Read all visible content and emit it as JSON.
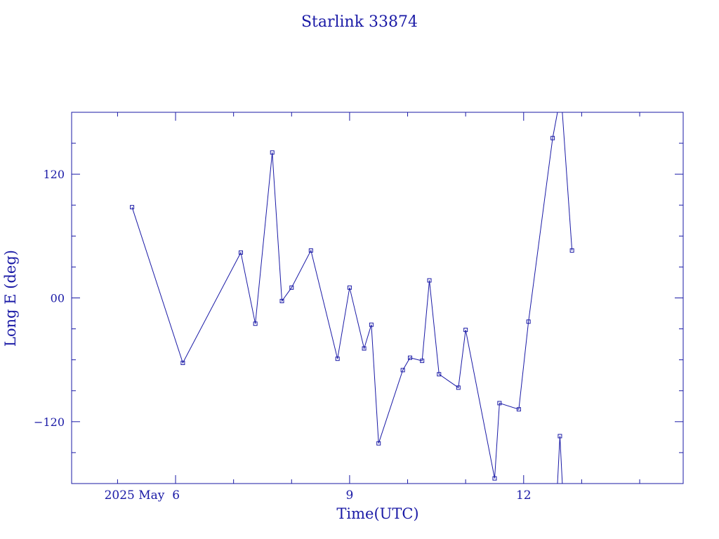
{
  "chart_data": {
    "type": "line",
    "title": "Starlink 33874",
    "xlabel": "Time(UTC)",
    "ylabel": "Long E (deg)",
    "x_unit": "days",
    "xlim": [
      "2025-05-04T05:00",
      "2025-05-14T18:00"
    ],
    "ylim": [
      -180,
      180
    ],
    "x_tick_labels": [
      "2025 May  6",
      "9",
      "12"
    ],
    "x_tick_values": [
      "2025-05-06T00:00",
      "2025-05-09T00:00",
      "2025-05-12T00:00"
    ],
    "y_ticks": [
      120,
      0,
      -120
    ],
    "y_tick_labels": [
      "120",
      "00",
      "−120"
    ],
    "series": [
      {
        "color": "#1a1aa6",
        "marker": "square",
        "points": [
          {
            "x": "2025-05-05T06:00",
            "y": 88
          },
          {
            "x": "2025-05-06T03:00",
            "y": -63
          },
          {
            "x": "2025-05-07T03:00",
            "y": 44
          },
          {
            "x": "2025-05-07T09:00",
            "y": -25
          },
          {
            "x": "2025-05-07T16:00",
            "y": 141
          },
          {
            "x": "2025-05-07T20:00",
            "y": -3
          },
          {
            "x": "2025-05-08T00:00",
            "y": 10
          },
          {
            "x": "2025-05-08T08:00",
            "y": 46
          },
          {
            "x": "2025-05-08T19:00",
            "y": -59
          },
          {
            "x": "2025-05-09T00:00",
            "y": 10
          },
          {
            "x": "2025-05-09T06:00",
            "y": -49
          },
          {
            "x": "2025-05-09T09:00",
            "y": -26
          },
          {
            "x": "2025-05-09T12:00",
            "y": -141
          },
          {
            "x": "2025-05-09T22:00",
            "y": -70
          },
          {
            "x": "2025-05-10T01:00",
            "y": -58
          },
          {
            "x": "2025-05-10T06:00",
            "y": -61
          },
          {
            "x": "2025-05-10T09:00",
            "y": 17
          },
          {
            "x": "2025-05-10T13:00",
            "y": -74
          },
          {
            "x": "2025-05-10T21:00",
            "y": -87
          },
          {
            "x": "2025-05-11T00:00",
            "y": -31
          },
          {
            "x": "2025-05-11T12:00",
            "y": -175
          },
          {
            "x": "2025-05-11T14:00",
            "y": -102
          },
          {
            "x": "2025-05-11T22:00",
            "y": -108
          },
          {
            "x": "2025-05-12T02:00",
            "y": -23
          },
          {
            "x": "2025-05-12T12:00",
            "y": 155
          },
          {
            "x": "2025-05-12T14:00",
            "y": 180,
            "marker": false
          },
          {
            "x": "2025-05-12T14:00",
            "y": -180,
            "marker": false,
            "break_before": true
          },
          {
            "x": "2025-05-12T15:00",
            "y": -134
          },
          {
            "x": "2025-05-12T16:00",
            "y": -180,
            "marker": false
          },
          {
            "x": "2025-05-12T16:00",
            "y": 180,
            "marker": false,
            "break_before": true
          },
          {
            "x": "2025-05-12T20:00",
            "y": 46
          }
        ]
      }
    ]
  }
}
